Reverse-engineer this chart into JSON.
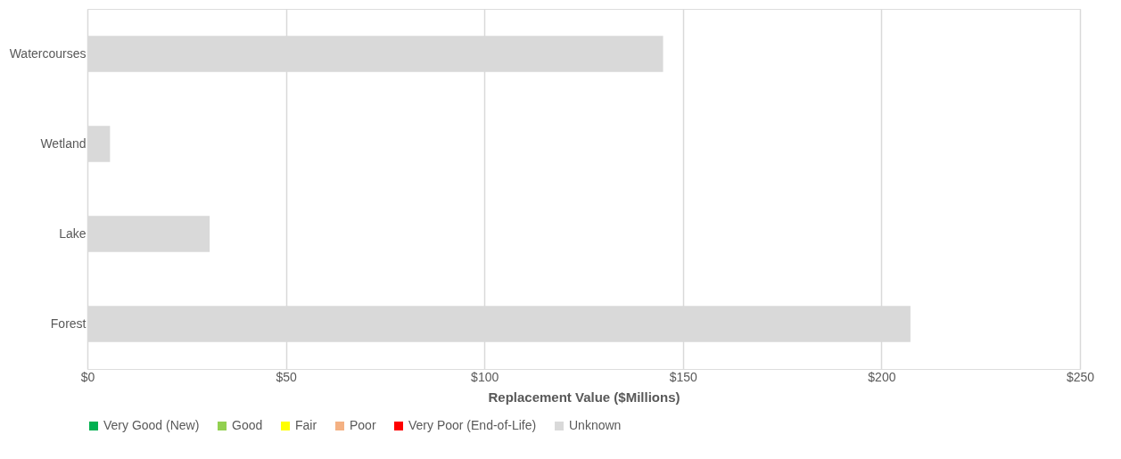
{
  "chart_data": {
    "type": "bar",
    "orientation": "horizontal",
    "xlabel": "Replacement Value ($Millions)",
    "categories": [
      "Watercourses",
      "Wetland",
      "Lake",
      "Forest"
    ],
    "series": [
      {
        "name": "Very Good (New)",
        "color": "#00b050",
        "values": [
          null,
          null,
          null,
          null
        ]
      },
      {
        "name": "Good",
        "color": "#92d050",
        "values": [
          null,
          null,
          null,
          null
        ]
      },
      {
        "name": "Fair",
        "color": "#ffff00",
        "values": [
          null,
          null,
          null,
          null
        ]
      },
      {
        "name": "Poor",
        "color": "#f4b183",
        "values": [
          null,
          null,
          null,
          null
        ]
      },
      {
        "name": "Very Poor (End-of-Life)",
        "color": "#ff0000",
        "values": [
          null,
          null,
          null,
          null
        ]
      },
      {
        "name": "Unknown",
        "color": "#d9d9d9",
        "values": [
          145,
          5.7,
          30.8,
          207.3
        ]
      }
    ],
    "xlim": [
      0,
      250
    ],
    "xticks": [
      {
        "value": 0,
        "label": "$0"
      },
      {
        "value": 50,
        "label": "$50"
      },
      {
        "value": 100,
        "label": "$100"
      },
      {
        "value": 150,
        "label": "$150"
      },
      {
        "value": 200,
        "label": "$200"
      },
      {
        "value": 250,
        "label": "$250"
      }
    ],
    "grid": "x",
    "legend": "bottom"
  }
}
